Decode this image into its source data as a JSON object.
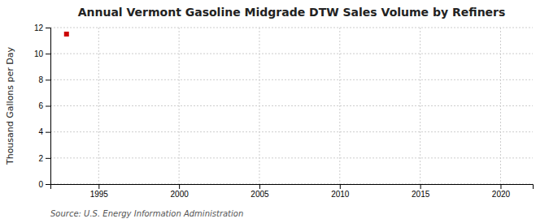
{
  "chart_data": {
    "type": "scatter",
    "title": "Annual Vermont Gasoline Midgrade DTW Sales Volume by Refiners",
    "ylabel": "Thousand Gallons per Day",
    "source": "Source: U.S. Energy Information Administration",
    "x": [
      1993
    ],
    "values": [
      11.5
    ],
    "color": "#cc0000",
    "marker": "square",
    "xlim": [
      1992,
      2022
    ],
    "ylim": [
      0,
      12
    ],
    "xticks": [
      1995,
      2000,
      2005,
      2010,
      2015,
      2020
    ],
    "yticks": [
      0,
      2,
      4,
      6,
      8,
      10,
      12
    ],
    "grid": true
  }
}
